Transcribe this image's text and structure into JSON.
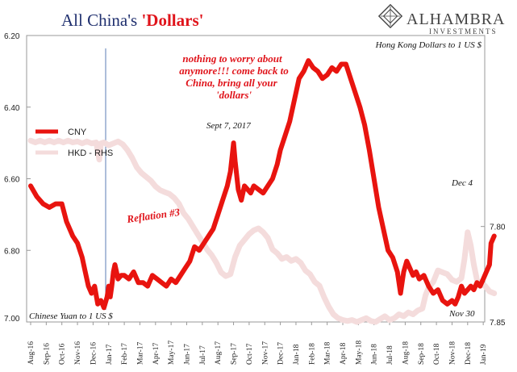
{
  "title": {
    "main": "All China's ",
    "accent": "'Dollars'"
  },
  "brand": {
    "name": "ALHAMBRA",
    "sub": "INVESTMENTS"
  },
  "annotations": {
    "rhs_title": "Hong Kong Dollars to 1 US $",
    "lhs_title": "Chinese Yuan to 1 US $",
    "quote": [
      "nothing to worry about",
      "anymore!!! come back to",
      "China, bring all your",
      "'dollars'"
    ],
    "sept": "Sept 7, 2017",
    "reflation": "Reflation #3",
    "dec4": "Dec 4",
    "nov30": "Nov 30"
  },
  "chart_data": {
    "type": "line",
    "title": "All China's 'Dollars'",
    "x": [
      "Aug-16",
      "Sep-16",
      "Oct-16",
      "Nov-16",
      "Dec-16",
      "Jan-17",
      "Feb-17",
      "Mar-17",
      "Apr-17",
      "May-17",
      "Jun-17",
      "Jul-17",
      "Aug-17",
      "Sep-17",
      "Oct-17",
      "Nov-17",
      "Dec-17",
      "Jan-18",
      "Feb-18",
      "Mar-18",
      "Apr-18",
      "May-18",
      "Jun-18",
      "Jul-18",
      "Aug-18",
      "Sep-18",
      "Oct-18",
      "Nov-18",
      "Dec-18",
      "Jan-19"
    ],
    "left_axis": {
      "min": 6.2,
      "max": 7.0,
      "inverted": true,
      "ticks": [
        "6.20",
        "6.40",
        "6.60",
        "6.80",
        "7.00"
      ]
    },
    "right_axis": {
      "min": 7.7,
      "max": 7.85,
      "inverted": true,
      "ticks": [
        "7.80",
        "7.85"
      ]
    },
    "legend": {
      "placement": "left",
      "entries": [
        "CNY",
        "HKD - RHS"
      ]
    },
    "series": [
      {
        "name": "CNY",
        "axis": "left",
        "color": "#e8140f",
        "points": [
          [
            0.0,
            6.62
          ],
          [
            0.4,
            6.65
          ],
          [
            0.8,
            6.67
          ],
          [
            1.2,
            6.68
          ],
          [
            1.6,
            6.67
          ],
          [
            2.0,
            6.67
          ],
          [
            2.3,
            6.72
          ],
          [
            2.7,
            6.76
          ],
          [
            3.0,
            6.78
          ],
          [
            3.3,
            6.82
          ],
          [
            3.5,
            6.86
          ],
          [
            3.7,
            6.9
          ],
          [
            3.9,
            6.92
          ],
          [
            4.1,
            6.9
          ],
          [
            4.3,
            6.95
          ],
          [
            4.5,
            6.94
          ],
          [
            4.7,
            6.96
          ],
          [
            4.9,
            6.93
          ],
          [
            5.0,
            6.9
          ],
          [
            5.1,
            6.93
          ],
          [
            5.2,
            6.9
          ],
          [
            5.3,
            6.86
          ],
          [
            5.4,
            6.84
          ],
          [
            5.6,
            6.88
          ],
          [
            5.8,
            6.87
          ],
          [
            6.0,
            6.87
          ],
          [
            6.3,
            6.88
          ],
          [
            6.6,
            6.86
          ],
          [
            6.9,
            6.89
          ],
          [
            7.2,
            6.89
          ],
          [
            7.5,
            6.9
          ],
          [
            7.8,
            6.87
          ],
          [
            8.1,
            6.88
          ],
          [
            8.4,
            6.89
          ],
          [
            8.7,
            6.9
          ],
          [
            9.0,
            6.88
          ],
          [
            9.3,
            6.89
          ],
          [
            9.6,
            6.87
          ],
          [
            9.9,
            6.85
          ],
          [
            10.2,
            6.83
          ],
          [
            10.5,
            6.79
          ],
          [
            10.8,
            6.8
          ],
          [
            11.1,
            6.78
          ],
          [
            11.4,
            6.76
          ],
          [
            11.7,
            6.74
          ],
          [
            12.0,
            6.7
          ],
          [
            12.3,
            6.66
          ],
          [
            12.6,
            6.62
          ],
          [
            12.8,
            6.58
          ],
          [
            13.0,
            6.5
          ],
          [
            13.1,
            6.55
          ],
          [
            13.3,
            6.63
          ],
          [
            13.5,
            6.66
          ],
          [
            13.7,
            6.62
          ],
          [
            13.9,
            6.63
          ],
          [
            14.1,
            6.64
          ],
          [
            14.3,
            6.62
          ],
          [
            14.6,
            6.63
          ],
          [
            14.9,
            6.64
          ],
          [
            15.2,
            6.62
          ],
          [
            15.5,
            6.6
          ],
          [
            15.8,
            6.56
          ],
          [
            16.0,
            6.52
          ],
          [
            16.3,
            6.48
          ],
          [
            16.6,
            6.44
          ],
          [
            16.9,
            6.38
          ],
          [
            17.2,
            6.32
          ],
          [
            17.5,
            6.3
          ],
          [
            17.8,
            6.27
          ],
          [
            18.1,
            6.29
          ],
          [
            18.4,
            6.3
          ],
          [
            18.7,
            6.32
          ],
          [
            19.0,
            6.31
          ],
          [
            19.3,
            6.29
          ],
          [
            19.6,
            6.3
          ],
          [
            19.9,
            6.28
          ],
          [
            20.2,
            6.28
          ],
          [
            20.5,
            6.32
          ],
          [
            20.8,
            6.36
          ],
          [
            21.1,
            6.4
          ],
          [
            21.4,
            6.45
          ],
          [
            21.7,
            6.52
          ],
          [
            22.0,
            6.6
          ],
          [
            22.3,
            6.68
          ],
          [
            22.6,
            6.74
          ],
          [
            22.9,
            6.8
          ],
          [
            23.2,
            6.82
          ],
          [
            23.5,
            6.86
          ],
          [
            23.7,
            6.92
          ],
          [
            23.9,
            6.86
          ],
          [
            24.1,
            6.83
          ],
          [
            24.3,
            6.85
          ],
          [
            24.5,
            6.87
          ],
          [
            24.7,
            6.86
          ],
          [
            24.9,
            6.88
          ],
          [
            25.2,
            6.87
          ],
          [
            25.5,
            6.9
          ],
          [
            25.8,
            6.92
          ],
          [
            26.1,
            6.91
          ],
          [
            26.4,
            6.94
          ],
          [
            26.7,
            6.95
          ],
          [
            27.0,
            6.94
          ],
          [
            27.2,
            6.95
          ],
          [
            27.4,
            6.93
          ],
          [
            27.6,
            6.9
          ],
          [
            27.8,
            6.92
          ],
          [
            28.0,
            6.91
          ],
          [
            28.2,
            6.9
          ],
          [
            28.4,
            6.91
          ],
          [
            28.6,
            6.89
          ],
          [
            28.8,
            6.9
          ],
          [
            29.0,
            6.88
          ],
          [
            29.2,
            6.86
          ],
          [
            29.4,
            6.84
          ],
          [
            29.5,
            6.78
          ],
          [
            29.7,
            6.76
          ]
        ]
      },
      {
        "name": "HKD - RHS",
        "axis": "right",
        "color": "#f4dcdc",
        "points": [
          [
            0.0,
            7.755
          ],
          [
            0.3,
            7.756
          ],
          [
            0.6,
            7.755
          ],
          [
            0.9,
            7.756
          ],
          [
            1.2,
            7.755
          ],
          [
            1.5,
            7.756
          ],
          [
            1.8,
            7.755
          ],
          [
            2.1,
            7.756
          ],
          [
            2.4,
            7.755
          ],
          [
            2.7,
            7.756
          ],
          [
            3.0,
            7.7555
          ],
          [
            3.3,
            7.7565
          ],
          [
            3.6,
            7.7555
          ],
          [
            3.9,
            7.7565
          ],
          [
            4.2,
            7.756
          ],
          [
            4.4,
            7.765
          ],
          [
            4.5,
            7.7565
          ],
          [
            4.7,
            7.756
          ],
          [
            5.0,
            7.7575
          ],
          [
            5.3,
            7.7565
          ],
          [
            5.6,
            7.7555
          ],
          [
            5.9,
            7.757
          ],
          [
            6.2,
            7.76
          ],
          [
            6.5,
            7.764
          ],
          [
            6.8,
            7.769
          ],
          [
            7.1,
            7.772
          ],
          [
            7.4,
            7.774
          ],
          [
            7.7,
            7.776
          ],
          [
            8.0,
            7.779
          ],
          [
            8.3,
            7.781
          ],
          [
            8.6,
            7.782
          ],
          [
            8.9,
            7.783
          ],
          [
            9.2,
            7.785
          ],
          [
            9.5,
            7.788
          ],
          [
            9.8,
            7.793
          ],
          [
            10.1,
            7.796
          ],
          [
            10.4,
            7.8
          ],
          [
            10.7,
            7.804
          ],
          [
            11.0,
            7.808
          ],
          [
            11.3,
            7.812
          ],
          [
            11.6,
            7.815
          ],
          [
            11.9,
            7.819
          ],
          [
            12.2,
            7.824
          ],
          [
            12.5,
            7.826
          ],
          [
            12.8,
            7.825
          ],
          [
            13.1,
            7.816
          ],
          [
            13.4,
            7.81
          ],
          [
            13.7,
            7.807
          ],
          [
            14.0,
            7.804
          ],
          [
            14.3,
            7.802
          ],
          [
            14.6,
            7.801
          ],
          [
            14.9,
            7.803
          ],
          [
            15.2,
            7.806
          ],
          [
            15.5,
            7.812
          ],
          [
            15.8,
            7.814
          ],
          [
            16.1,
            7.817
          ],
          [
            16.4,
            7.816
          ],
          [
            16.7,
            7.818
          ],
          [
            17.0,
            7.817
          ],
          [
            17.3,
            7.819
          ],
          [
            17.6,
            7.823
          ],
          [
            17.9,
            7.825
          ],
          [
            18.2,
            7.829
          ],
          [
            18.5,
            7.831
          ],
          [
            18.8,
            7.837
          ],
          [
            19.1,
            7.842
          ],
          [
            19.4,
            7.846
          ],
          [
            19.7,
            7.848
          ],
          [
            20.0,
            7.849
          ],
          [
            20.3,
            7.8495
          ],
          [
            20.6,
            7.849
          ],
          [
            20.9,
            7.85
          ],
          [
            21.2,
            7.849
          ],
          [
            21.5,
            7.848
          ],
          [
            21.8,
            7.8495
          ],
          [
            22.1,
            7.85
          ],
          [
            22.4,
            7.8485
          ],
          [
            22.7,
            7.847
          ],
          [
            23.0,
            7.849
          ],
          [
            23.3,
            7.848
          ],
          [
            23.6,
            7.846
          ],
          [
            23.9,
            7.847
          ],
          [
            24.2,
            7.845
          ],
          [
            24.5,
            7.846
          ],
          [
            24.8,
            7.844
          ],
          [
            25.1,
            7.843
          ],
          [
            25.3,
            7.836
          ],
          [
            25.5,
            7.832
          ],
          [
            25.8,
            7.829
          ],
          [
            26.1,
            7.823
          ],
          [
            26.4,
            7.824
          ],
          [
            26.7,
            7.825
          ],
          [
            27.0,
            7.828
          ],
          [
            27.3,
            7.829
          ],
          [
            27.6,
            7.827
          ],
          [
            27.8,
            7.817
          ],
          [
            28.0,
            7.803
          ],
          [
            28.2,
            7.81
          ],
          [
            28.4,
            7.82
          ],
          [
            28.6,
            7.828
          ],
          [
            28.8,
            7.83
          ],
          [
            29.1,
            7.831
          ],
          [
            29.4,
            7.834
          ],
          [
            29.7,
            7.835
          ]
        ]
      }
    ]
  }
}
